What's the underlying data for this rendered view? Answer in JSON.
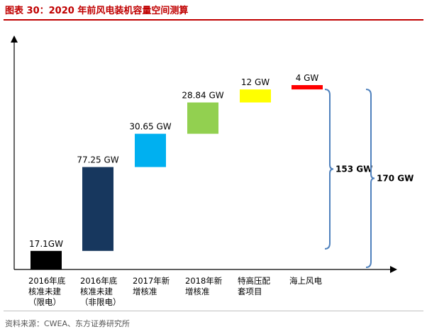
{
  "header": {
    "title_prefix": "图表 30：",
    "title_text": "2020 年前风电装机容量空间测算"
  },
  "footer": {
    "source": "资料来源：CWEA、东方证券研究所"
  },
  "chart_data": {
    "type": "bar",
    "subtype": "waterfall",
    "categories": [
      [
        "2016年底",
        "核准未建",
        "（限电）"
      ],
      [
        "2016年底",
        "核准未建",
        "（非限电）"
      ],
      [
        "2017年新",
        "增核准"
      ],
      [
        "2018年新",
        "增核准"
      ],
      [
        "特高压配",
        "套项目"
      ],
      [
        "海上风电"
      ]
    ],
    "values": [
      17.1,
      77.25,
      30.65,
      28.84,
      12,
      4
    ],
    "data_labels": [
      "17.1GW",
      "77.25 GW",
      "30.65 GW",
      "28.84 GW",
      "12 GW",
      "4 GW"
    ],
    "bar_colors": [
      "#000000",
      "#17375e",
      "#00b0f0",
      "#92d050",
      "#ffff00",
      "#ff0000"
    ],
    "brace_labels": [
      {
        "label": "153 GW",
        "from": 17.1,
        "to": 169.84
      },
      {
        "label": "170 GW",
        "from": 0,
        "to": 169.84
      }
    ],
    "ylim": [
      0,
      175
    ],
    "xlabel": "",
    "ylabel": "",
    "grid": false,
    "legend": "none"
  },
  "colors": {
    "title": "#c00000",
    "brace": "#4f81bd",
    "axis": "#000000"
  }
}
